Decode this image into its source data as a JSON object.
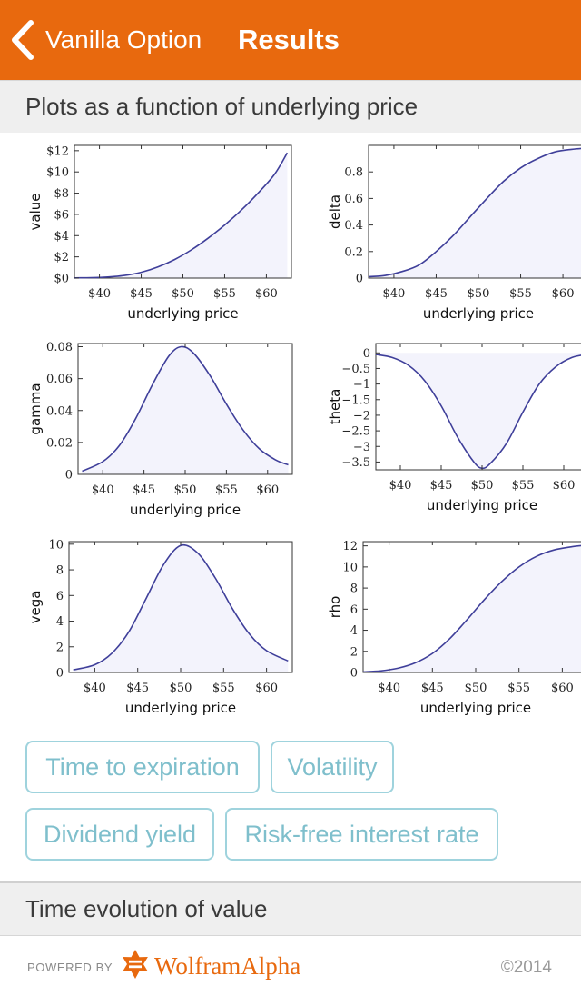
{
  "header": {
    "back_label": "Vanilla Option",
    "title": "Results",
    "accent_color": "#e8690e",
    "back_icon": "chevron-left-icon"
  },
  "section_plots": {
    "title": "Plots as a function of underlying price"
  },
  "chart_data": [
    {
      "type": "area",
      "title": "",
      "ylabel": "value",
      "xlabel": "underlying price",
      "xlim": [
        37,
        63
      ],
      "ylim": [
        0,
        12.5
      ],
      "x_ticks": [
        40,
        45,
        50,
        55,
        60
      ],
      "x_tick_labels": [
        "$40",
        "$45",
        "$50",
        "$55",
        "$60"
      ],
      "y_ticks": [
        0,
        2,
        4,
        6,
        8,
        10,
        12
      ],
      "y_tick_labels": [
        "$0",
        "$2",
        "$4",
        "$6",
        "$8",
        "$10",
        "$12"
      ],
      "x": [
        37,
        39,
        41,
        43,
        45,
        47,
        49,
        51,
        53,
        55,
        57,
        59,
        61,
        62.5
      ],
      "y": [
        0.02,
        0.04,
        0.1,
        0.25,
        0.55,
        1.05,
        1.75,
        2.65,
        3.75,
        5.0,
        6.4,
        8.0,
        9.8,
        11.8
      ]
    },
    {
      "type": "area",
      "title": "",
      "ylabel": "delta",
      "xlabel": "underlying price",
      "xlim": [
        37,
        63
      ],
      "ylim": [
        0,
        1.0
      ],
      "x_ticks": [
        40,
        45,
        50,
        55,
        60
      ],
      "x_tick_labels": [
        "$40",
        "$45",
        "$50",
        "$55",
        "$60"
      ],
      "y_ticks": [
        0,
        0.2,
        0.4,
        0.6,
        0.8
      ],
      "y_tick_labels": [
        "0",
        "0.2",
        "0.4",
        "0.6",
        "0.8"
      ],
      "x": [
        37,
        39,
        41,
        43,
        45,
        47,
        49,
        51,
        53,
        55,
        57,
        59,
        61,
        63
      ],
      "y": [
        0.01,
        0.02,
        0.05,
        0.1,
        0.2,
        0.32,
        0.46,
        0.6,
        0.73,
        0.83,
        0.9,
        0.95,
        0.97,
        0.98
      ]
    },
    {
      "type": "area",
      "title": "",
      "ylabel": "gamma",
      "xlabel": "underlying price",
      "xlim": [
        37,
        63
      ],
      "ylim": [
        0,
        0.082
      ],
      "x_ticks": [
        40,
        45,
        50,
        55,
        60
      ],
      "x_tick_labels": [
        "$40",
        "$45",
        "$50",
        "$55",
        "$60"
      ],
      "y_ticks": [
        0,
        0.02,
        0.04,
        0.06,
        0.08
      ],
      "y_tick_labels": [
        "0",
        "0.02",
        "0.04",
        "0.06",
        "0.08"
      ],
      "x": [
        37.5,
        40,
        42,
        44,
        46,
        48,
        49.5,
        51,
        53,
        55,
        57,
        59,
        61,
        62.5
      ],
      "y": [
        0.002,
        0.008,
        0.018,
        0.035,
        0.056,
        0.074,
        0.08,
        0.076,
        0.062,
        0.044,
        0.028,
        0.016,
        0.009,
        0.006
      ]
    },
    {
      "type": "area",
      "title": "",
      "ylabel": "theta",
      "xlabel": "underlying price",
      "xlim": [
        37,
        63
      ],
      "ylim": [
        -3.75,
        0.3
      ],
      "x_ticks": [
        40,
        45,
        50,
        55,
        60
      ],
      "x_tick_labels": [
        "$40",
        "$45",
        "$50",
        "$55",
        "$60"
      ],
      "y_ticks": [
        0,
        -0.5,
        -1,
        -1.5,
        -2,
        -2.5,
        -3,
        -3.5
      ],
      "y_tick_labels": [
        "0",
        "−0.5",
        "−1",
        "−1.5",
        "−2",
        "−2.5",
        "−3",
        "−3.5"
      ],
      "x": [
        37,
        39,
        41,
        43,
        45,
        47,
        49,
        50,
        51,
        53,
        55,
        57,
        59,
        61,
        63
      ],
      "y": [
        -0.05,
        -0.15,
        -0.4,
        -0.9,
        -1.7,
        -2.7,
        -3.5,
        -3.7,
        -3.55,
        -2.9,
        -1.9,
        -1.0,
        -0.45,
        -0.15,
        -0.04
      ]
    },
    {
      "type": "area",
      "title": "",
      "ylabel": "vega",
      "xlabel": "underlying price",
      "xlim": [
        37,
        63
      ],
      "ylim": [
        0,
        10.2
      ],
      "x_ticks": [
        40,
        45,
        50,
        55,
        60
      ],
      "x_tick_labels": [
        "$40",
        "$45",
        "$50",
        "$55",
        "$60"
      ],
      "y_ticks": [
        0,
        2,
        4,
        6,
        8,
        10
      ],
      "y_tick_labels": [
        "0",
        "2",
        "4",
        "6",
        "8",
        "10"
      ],
      "x": [
        37.5,
        40,
        42,
        44,
        46,
        48,
        50,
        52,
        54,
        56,
        58,
        60,
        62.5
      ],
      "y": [
        0.2,
        0.6,
        1.5,
        3.2,
        5.8,
        8.4,
        9.9,
        9.3,
        7.4,
        5.0,
        3.0,
        1.7,
        0.9
      ]
    },
    {
      "type": "area",
      "title": "",
      "ylabel": "rho",
      "xlabel": "underlying price",
      "xlim": [
        37,
        63
      ],
      "ylim": [
        0,
        12.4
      ],
      "x_ticks": [
        40,
        45,
        50,
        55,
        60
      ],
      "x_tick_labels": [
        "$40",
        "$45",
        "$50",
        "$55",
        "$60"
      ],
      "y_ticks": [
        0,
        2,
        4,
        6,
        8,
        10,
        12
      ],
      "y_tick_labels": [
        "0",
        "2",
        "4",
        "6",
        "8",
        "10",
        "12"
      ],
      "x": [
        37,
        39,
        41,
        43,
        45,
        47,
        49,
        51,
        53,
        55,
        57,
        59,
        61,
        63
      ],
      "y": [
        0.05,
        0.15,
        0.4,
        0.9,
        1.8,
        3.2,
        5.0,
        6.9,
        8.6,
        10.0,
        11.0,
        11.6,
        11.9,
        12.1
      ]
    }
  ],
  "parameter_buttons": [
    {
      "label": "Time to expiration"
    },
    {
      "label": "Volatility"
    },
    {
      "label": "Dividend yield"
    },
    {
      "label": "Risk-free interest rate"
    }
  ],
  "section_time": {
    "title": "Time evolution of value"
  },
  "footer": {
    "powered_by": "POWERED BY",
    "brand": "WolframAlpha",
    "brand_logo_icon": "wolframalpha-logo-icon",
    "copyright": "©2014"
  },
  "colors": {
    "line": "#3f3f9a",
    "fill": "#f3f3fc",
    "chip_border": "#9fd3dd",
    "chip_text": "#7fbfcc"
  }
}
